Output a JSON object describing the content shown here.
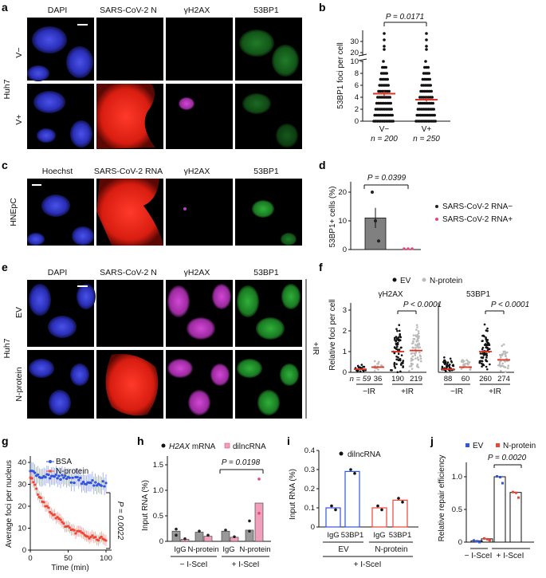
{
  "panel_letters": {
    "a": "a",
    "b": "b",
    "c": "c",
    "d": "d",
    "e": "e",
    "f": "f",
    "g": "g",
    "h": "h",
    "i": "i",
    "j": "j"
  },
  "a": {
    "headers": [
      "DAPI",
      "SARS-CoV-2 N",
      "γH2AX",
      "53BP1"
    ],
    "cell_line": "Huh7",
    "rows": [
      "V−",
      "V+"
    ]
  },
  "b": {
    "ylabel": "53BP1 foci per cell",
    "yticks": [
      "0",
      "2",
      "4",
      "6",
      "8",
      "10",
      "20",
      "30"
    ],
    "pvalue": "P = 0.0171",
    "groups": [
      {
        "label": "V−",
        "n": "n = 200",
        "mean": 4.6,
        "sem": 0.35
      },
      {
        "label": "V+",
        "n": "n = 250",
        "mean": 3.6,
        "sem": 0.3
      }
    ]
  },
  "c": {
    "headers": [
      "Hoechst",
      "SARS-CoV-2 RNA",
      "γH2AX",
      "53BP1"
    ],
    "cell_line": "HNEpC"
  },
  "d": {
    "ylabel": "53BP1+ cells (%)",
    "yticks": [
      "0",
      "10",
      "20"
    ],
    "pvalue": "P = 0.0399",
    "legend": [
      "SARS-CoV-2 RNA−",
      "SARS-CoV-2 RNA+"
    ],
    "colors": {
      "neg": "#222222",
      "pos": "#e8467a",
      "bar": "#808080"
    }
  },
  "e": {
    "headers": [
      "DAPI",
      "SARS-CoV-2 N",
      "γH2AX",
      "53BP1"
    ],
    "cell_line": "Huh7",
    "rows": [
      "EV",
      "N-protein"
    ],
    "side": "+IR"
  },
  "f": {
    "legend": [
      "EV",
      "N-protein"
    ],
    "ylabel": "Relative foci per cell",
    "yticks": [
      "0",
      "1",
      "2",
      "3"
    ],
    "sub": [
      {
        "title": "γH2AX",
        "pvalue": "P < 0.0001",
        "n": [
          "n = 59",
          "36",
          "190",
          "219"
        ]
      },
      {
        "title": "53BP1",
        "pvalue": "P < 0.0001",
        "n": [
          "88",
          "60",
          "260",
          "274"
        ]
      }
    ],
    "conditions": [
      "−IR",
      "+IR"
    ],
    "colors": {
      "ev": "#111111",
      "np": "#bbbbbb",
      "mean": "#e03020"
    }
  },
  "g": {
    "ylabel": "Average foci per nucleus",
    "xlabel": "Time (min)",
    "yticks": [
      "0",
      "10",
      "20",
      "30",
      "40"
    ],
    "xticks": [
      "0",
      "50",
      "100"
    ],
    "legend": [
      "BSA",
      "N-protein"
    ],
    "pvalue": "P = 0.0022",
    "colors": {
      "bsa": "#3355dd",
      "np": "#ee4433"
    }
  },
  "h": {
    "legend_mrna_italic": "H2AX",
    "legend_mrna_rest": " mRNA",
    "legend_dil": "dilncRNA",
    "ylabel": "Input RNA (%)",
    "yticks": [
      "0",
      "0.5",
      "1.0",
      "1.5"
    ],
    "pvalue": "P = 0.0198",
    "xlabels": [
      "IgG",
      "N-protein",
      "IgG",
      "N-protein"
    ],
    "groups": [
      "− I-SceI",
      "+ I-SceI"
    ]
  },
  "i": {
    "legend": "dilncRNA",
    "ylabel": "Input RNA (%)",
    "yticks": [
      "0",
      "0.1",
      "0.2",
      "0.3",
      "0.4"
    ],
    "xlabels": [
      "IgG",
      "53BP1",
      "IgG",
      "53BP1"
    ],
    "groups": [
      "EV",
      "N-protein"
    ],
    "bottom": "+ I-SceI"
  },
  "j": {
    "legend": [
      "EV",
      "N-protein"
    ],
    "ylabel": "Relative repair efficiency",
    "yticks": [
      "0",
      "0.5",
      "1.0"
    ],
    "pvalue": "P = 0.0020",
    "groups": [
      "− I-SceI",
      "+ I-SceI"
    ]
  }
}
